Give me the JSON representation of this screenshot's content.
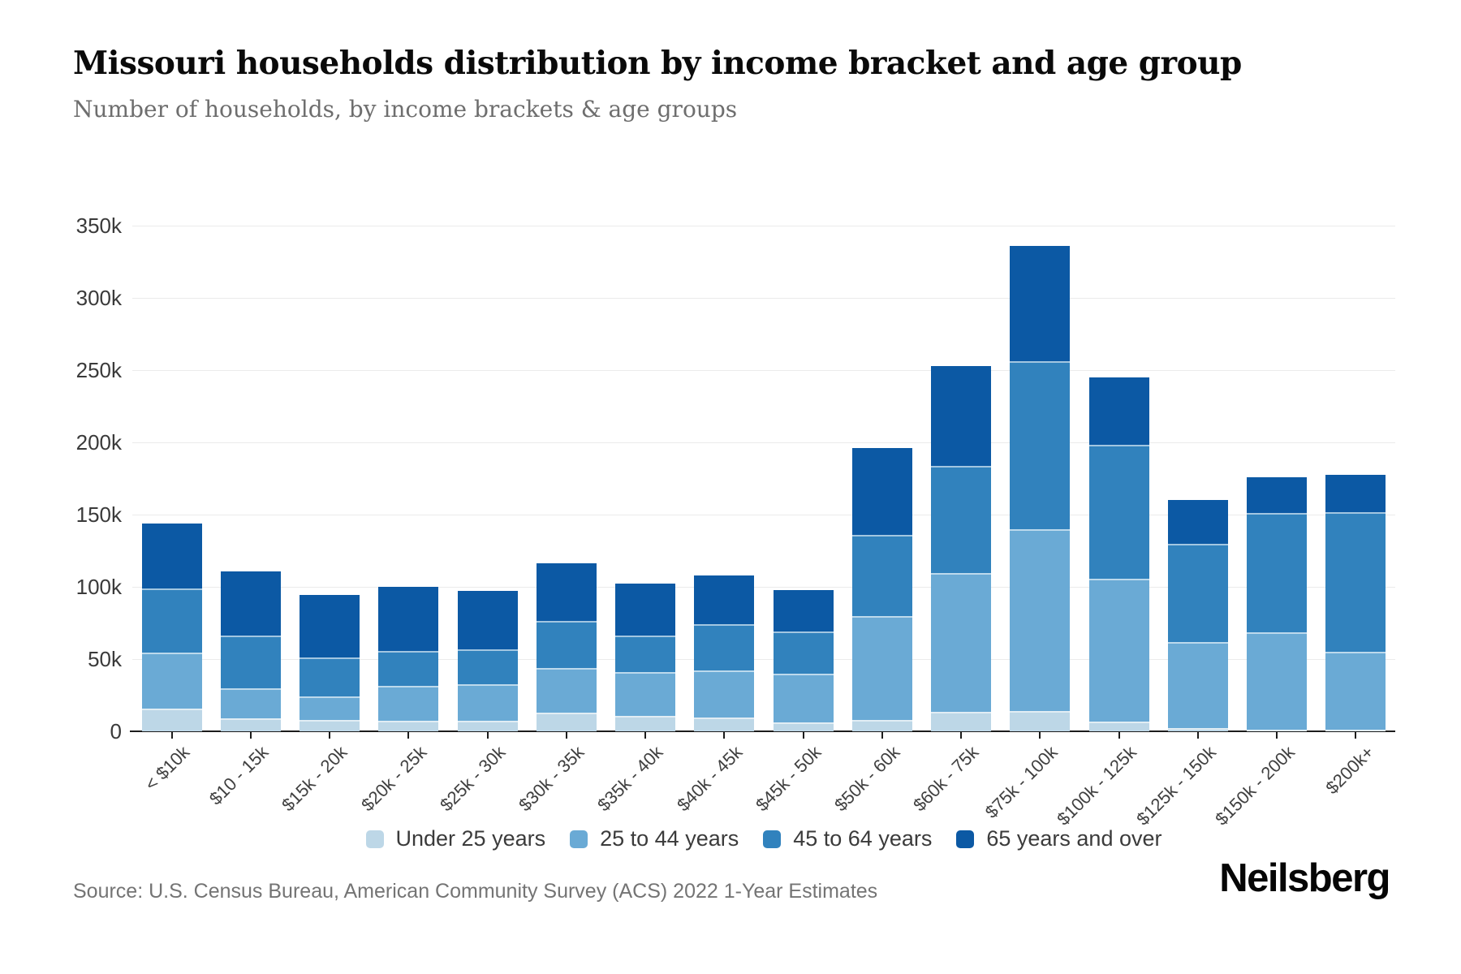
{
  "header": {
    "title": "Missouri households distribution by income bracket and age group",
    "subtitle": "Number of households, by income brackets & age groups"
  },
  "source": {
    "text": "Source: U.S. Census Bureau, American Community Survey (ACS) 2022 1-Year Estimates"
  },
  "branding": {
    "logo_text": "Neilsberg"
  },
  "chart_data": {
    "type": "bar",
    "stacked": true,
    "title": "Missouri households distribution by income bracket and age group",
    "subtitle": "Number of households, by income brackets & age groups",
    "xlabel": "",
    "ylabel": "",
    "grid": true,
    "legend_position": "bottom",
    "ylim": [
      0,
      350000
    ],
    "ytick_step": 50000,
    "ytick_labels": [
      "0",
      "50k",
      "100k",
      "150k",
      "200k",
      "250k",
      "300k",
      "350k"
    ],
    "categories": [
      "< $10k",
      "$10 - 15k",
      "$15k - 20k",
      "$20k - 25k",
      "$25k - 30k",
      "$30k - 35k",
      "$35k - 40k",
      "$40k - 45k",
      "$45k - 50k",
      "$50k - 60k",
      "$60k - 75k",
      "$75k - 100k",
      "$100k - 125k",
      "$125k - 150k",
      "$150k - 200k",
      "$200k+"
    ],
    "series": [
      {
        "name": "Under 25 years",
        "color": "#bdd7e7",
        "values": [
          15500,
          8800,
          8000,
          7500,
          7100,
          13000,
          10700,
          9500,
          6000,
          8000,
          13500,
          14000,
          6500,
          2500,
          1200,
          900
        ]
      },
      {
        "name": "25 to 44 years",
        "color": "#6aaad5",
        "values": [
          39100,
          21100,
          16300,
          23700,
          25600,
          31000,
          30300,
          32800,
          34100,
          72000,
          96200,
          126000,
          98900,
          59500,
          67200,
          53900
        ]
      },
      {
        "name": "45 to 64 years",
        "color": "#3182bd",
        "values": [
          44500,
          36200,
          26900,
          24600,
          23800,
          32300,
          25400,
          31600,
          29100,
          56200,
          74200,
          116000,
          92700,
          68000,
          83000,
          97000
        ]
      },
      {
        "name": "65 years and over",
        "color": "#0c59a4",
        "values": [
          44900,
          44500,
          43100,
          44000,
          40500,
          40200,
          35900,
          33900,
          28800,
          59800,
          69100,
          80000,
          46900,
          30000,
          24600,
          25900
        ]
      }
    ],
    "totals": [
      144000,
      110600,
      94300,
      99800,
      97000,
      116500,
      102300,
      107800,
      98000,
      196000,
      253000,
      336000,
      245000,
      160000,
      176000,
      177700
    ]
  },
  "colors": {
    "gridline": "#ebebeb",
    "axis": "#1c1c1c",
    "title_text": "#0a0a0a",
    "subtitle_text": "#6e6e6e",
    "tick_text": "#3a3a3a",
    "source_text": "#747474"
  }
}
